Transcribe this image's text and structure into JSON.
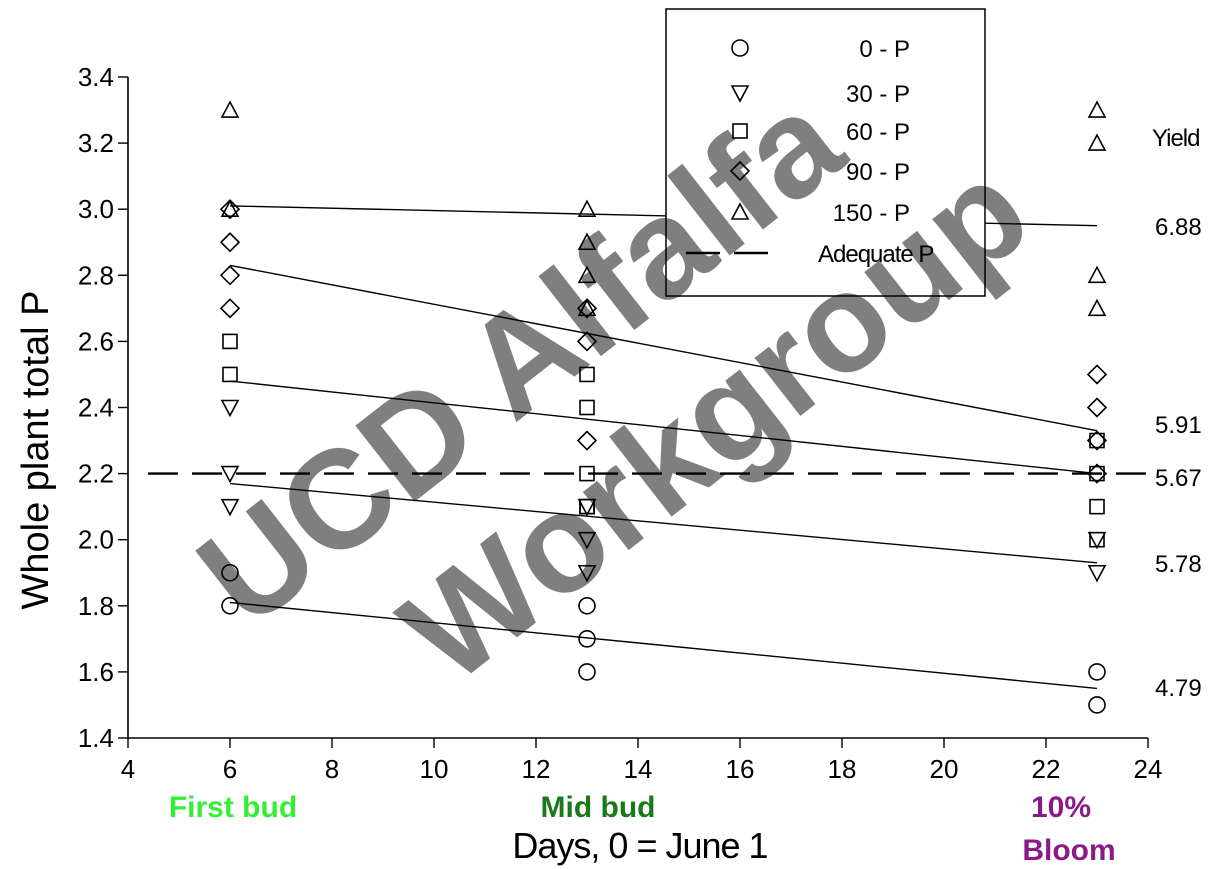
{
  "chart_data": {
    "type": "scatter",
    "xlabel": "Days, 0 = June 1",
    "ylabel": "Whole plant total P",
    "xlim": [
      4,
      24
    ],
    "ylim": [
      1.4,
      3.4
    ],
    "x_ticks": [
      4,
      6,
      8,
      10,
      12,
      14,
      16,
      18,
      20,
      22,
      24
    ],
    "y_ticks": [
      1.4,
      1.6,
      1.8,
      2.0,
      2.2,
      2.4,
      2.6,
      2.8,
      3.0,
      3.2,
      3.4
    ],
    "grid": false,
    "legend_position": "top-right",
    "series": [
      {
        "name": "0 - P",
        "marker": "circle",
        "x": [
          6,
          6,
          13,
          13,
          13,
          23,
          23
        ],
        "y": [
          1.9,
          1.8,
          1.8,
          1.7,
          1.6,
          1.6,
          1.5
        ],
        "trend": {
          "x": [
            6,
            23
          ],
          "y": [
            1.81,
            1.55
          ]
        },
        "yield": "4.79"
      },
      {
        "name": "30 - P",
        "marker": "triangle-down",
        "x": [
          6,
          6,
          6,
          13,
          13,
          13,
          23,
          23
        ],
        "y": [
          2.4,
          2.2,
          2.1,
          2.1,
          2.0,
          1.9,
          2.0,
          1.9
        ],
        "trend": {
          "x": [
            6,
            23
          ],
          "y": [
            2.17,
            1.93
          ]
        },
        "yield": "5.78"
      },
      {
        "name": "60 - P",
        "marker": "square",
        "x": [
          6,
          6,
          13,
          13,
          13,
          13,
          13,
          23,
          23,
          23,
          23
        ],
        "y": [
          2.6,
          2.5,
          2.5,
          2.4,
          2.2,
          2.1,
          2.1,
          2.3,
          2.2,
          2.1,
          2.0
        ],
        "trend": {
          "x": [
            6,
            23
          ],
          "y": [
            2.48,
            2.2
          ]
        },
        "yield": "5.67"
      },
      {
        "name": "90 - P",
        "marker": "diamond",
        "x": [
          6,
          6,
          6,
          6,
          13,
          13,
          13,
          23,
          23,
          23,
          23
        ],
        "y": [
          3.0,
          2.9,
          2.8,
          2.7,
          2.7,
          2.6,
          2.3,
          2.5,
          2.4,
          2.3,
          2.2
        ],
        "trend": {
          "x": [
            6,
            23
          ],
          "y": [
            2.83,
            2.33
          ]
        },
        "yield": "5.91"
      },
      {
        "name": "150 - P",
        "marker": "triangle-up",
        "x": [
          6,
          6,
          13,
          13,
          13,
          13,
          23,
          23,
          23,
          23
        ],
        "y": [
          3.3,
          3.0,
          3.0,
          2.9,
          2.8,
          2.7,
          3.3,
          3.2,
          2.8,
          2.7
        ],
        "trend": {
          "x": [
            6,
            23
          ],
          "y": [
            3.01,
            2.95
          ]
        },
        "yield": "6.88"
      }
    ],
    "reference_line": {
      "name": "Adequate P",
      "y": 2.2,
      "style": "dashed"
    },
    "yield_header": "Yield",
    "stages": [
      {
        "label": "First bud",
        "color": "#33ee33"
      },
      {
        "label": "Mid bud",
        "color": "#1a7a1a"
      },
      {
        "label": "10% Bloom",
        "lines": [
          "10%",
          "Bloom"
        ],
        "color": "#8a1a8a"
      }
    ],
    "watermark": {
      "lines": [
        "UCD Alfalfa",
        "Workgroup"
      ]
    }
  }
}
